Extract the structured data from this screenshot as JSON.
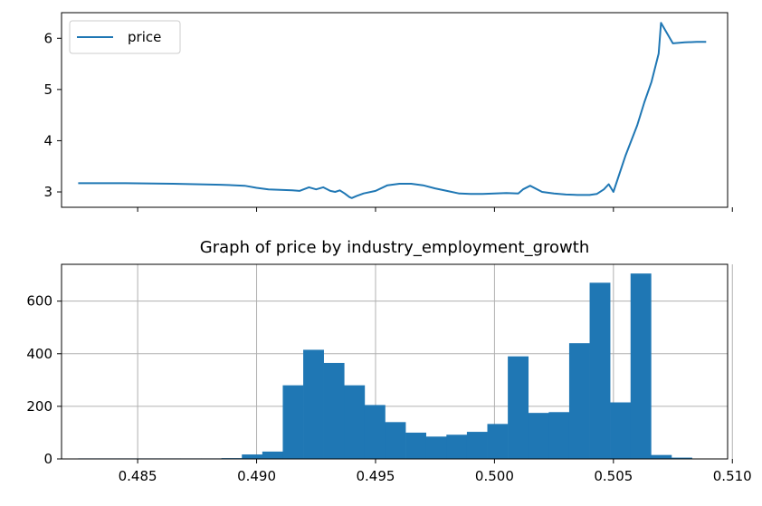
{
  "colors": {
    "series": "#1f77b4",
    "grid": "#b0b0b0",
    "axis": "#000000",
    "legend_border": "#cccccc"
  },
  "chart_data": [
    {
      "type": "line",
      "title": "",
      "xlabel": "",
      "ylabel": "",
      "xlim": [
        0.4818,
        0.5098
      ],
      "ylim": [
        2.7,
        6.5
      ],
      "yticks": [
        3,
        4,
        5,
        6
      ],
      "ytick_labels": [
        "3",
        "4",
        "5",
        "6"
      ],
      "xticks": [
        0.485,
        0.49,
        0.495,
        0.5,
        0.505,
        0.51
      ],
      "grid": false,
      "legend": {
        "placement": "top-left",
        "entries": [
          "price"
        ]
      },
      "series": [
        {
          "name": "price",
          "x": [
            0.4825,
            0.4845,
            0.4865,
            0.4885,
            0.4895,
            0.49,
            0.4905,
            0.491,
            0.4915,
            0.4918,
            0.4922,
            0.4925,
            0.4928,
            0.4931,
            0.4933,
            0.4935,
            0.4937,
            0.4939,
            0.494,
            0.4942,
            0.4945,
            0.495,
            0.4955,
            0.496,
            0.4965,
            0.497,
            0.4975,
            0.498,
            0.4985,
            0.499,
            0.4995,
            0.5,
            0.5005,
            0.501,
            0.5012,
            0.5015,
            0.502,
            0.5025,
            0.503,
            0.5035,
            0.504,
            0.5043,
            0.5046,
            0.5048,
            0.505,
            0.5055,
            0.506,
            0.5063,
            0.5066,
            0.5069,
            0.507,
            0.5075,
            0.508,
            0.5085,
            0.5089
          ],
          "y": [
            3.17,
            3.17,
            3.16,
            3.14,
            3.12,
            3.08,
            3.05,
            3.04,
            3.03,
            3.02,
            3.09,
            3.05,
            3.09,
            3.02,
            3.0,
            3.03,
            2.97,
            2.9,
            2.88,
            2.92,
            2.97,
            3.02,
            3.13,
            3.16,
            3.16,
            3.13,
            3.07,
            3.02,
            2.97,
            2.96,
            2.96,
            2.97,
            2.98,
            2.97,
            3.05,
            3.12,
            3.0,
            2.97,
            2.95,
            2.94,
            2.94,
            2.96,
            3.05,
            3.15,
            3.0,
            3.7,
            4.3,
            4.75,
            5.15,
            5.7,
            6.3,
            5.9,
            5.92,
            5.93,
            5.93
          ]
        }
      ]
    },
    {
      "type": "bar",
      "title": "Graph of price by industry_employment_growth",
      "xlabel": "",
      "ylabel": "",
      "xlim": [
        0.4818,
        0.5098
      ],
      "ylim": [
        0,
        740
      ],
      "xticks": [
        0.485,
        0.49,
        0.495,
        0.5,
        0.505,
        0.51
      ],
      "xtick_labels": [
        "0.485",
        "0.490",
        "0.495",
        "0.500",
        "0.505",
        "0.510"
      ],
      "yticks": [
        0,
        200,
        400,
        600
      ],
      "ytick_labels": [
        "0",
        "200",
        "400",
        "600"
      ],
      "grid": true,
      "bins": {
        "start": 0.4825,
        "width": 0.00086,
        "counts": [
          2,
          2,
          2,
          2,
          2,
          2,
          2,
          3,
          17,
          28,
          280,
          415,
          365,
          280,
          205,
          140,
          100,
          85,
          92,
          103,
          133,
          390,
          175,
          178,
          440,
          670,
          215,
          705,
          15,
          5
        ]
      }
    }
  ]
}
